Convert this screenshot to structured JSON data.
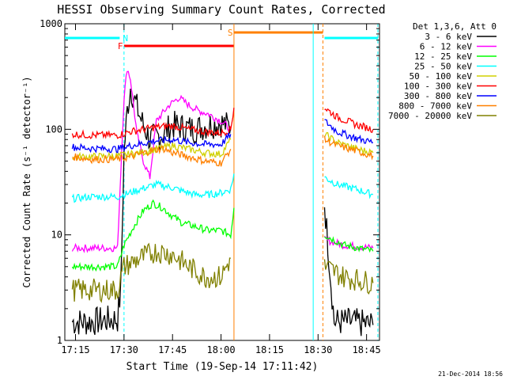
{
  "chart_data": {
    "type": "line",
    "title": "HESSI Observing Summary Count Rates, Corrected",
    "xlabel": "Start Time (19-Sep-14 17:11:42)",
    "ylabel": "Corrected Count Rate (s⁻¹ detector⁻¹)",
    "date_stamp": "21-Dec-2014 18:56",
    "xlim": [
      "17:11:42",
      "18:49:00"
    ],
    "ylim": [
      1,
      1000
    ],
    "y_scale": "log",
    "x_ticks": [
      "17:15",
      "17:30",
      "17:45",
      "18:00",
      "18:15",
      "18:30",
      "18:45"
    ],
    "y_ticks": [
      "1",
      "10",
      "100",
      "1000"
    ],
    "legend": {
      "title": "Det 1,3,6, Att 0",
      "placement": "outside-right"
    },
    "flags": [
      {
        "label": "N",
        "color": "#00ffff",
        "segments": [
          [
            "17:11:42",
            "17:28:40"
          ],
          [
            "18:32:00",
            "18:48:30"
          ]
        ]
      },
      {
        "label": "F",
        "color": "#ff0000",
        "segments": [
          [
            "17:30:00",
            "18:04:00"
          ]
        ]
      },
      {
        "label": "S",
        "color": "#ff8000",
        "segments": [
          [
            "18:04:00",
            "18:31:30"
          ]
        ]
      }
    ],
    "markers": [
      {
        "time": "17:30:00",
        "color": "#00ffff",
        "style": "dashed"
      },
      {
        "time": "18:04:00",
        "color": "#ff8000",
        "style": "solid"
      },
      {
        "time": "18:28:30",
        "color": "#00ffff",
        "style": "solid"
      },
      {
        "time": "18:31:30",
        "color": "#ff8000",
        "style": "dashed"
      },
      {
        "time": "18:48:30",
        "color": "#00ffff",
        "style": "dashed"
      }
    ],
    "gap": [
      "18:04:30",
      "18:31:30"
    ],
    "series": [
      {
        "name": "3 - 6 keV",
        "color": "#000000",
        "points": [
          [
            "17:14",
            1.5
          ],
          [
            "17:20",
            1.5
          ],
          [
            "17:28",
            1.6
          ],
          [
            "17:29",
            3
          ],
          [
            "17:30",
            60
          ],
          [
            "17:31",
            150
          ],
          [
            "17:32",
            250
          ],
          [
            "17:33",
            200
          ],
          [
            "17:35",
            130
          ],
          [
            "17:38",
            80
          ],
          [
            "17:42",
            90
          ],
          [
            "17:45",
            110
          ],
          [
            "17:48",
            105
          ],
          [
            "17:52",
            100
          ],
          [
            "17:56",
            110
          ],
          [
            "18:00",
            115
          ],
          [
            "18:03",
            105
          ],
          [
            "18:32",
            20
          ],
          [
            "18:35",
            1.5
          ],
          [
            "18:40",
            1.5
          ],
          [
            "18:47",
            1.4
          ]
        ]
      },
      {
        "name": "6 - 12 keV",
        "color": "#ff00ff",
        "points": [
          [
            "17:14",
            7.5
          ],
          [
            "17:20",
            7.5
          ],
          [
            "17:28",
            7.5
          ],
          [
            "17:29",
            40
          ],
          [
            "17:30",
            200
          ],
          [
            "17:31",
            380
          ],
          [
            "17:32",
            300
          ],
          [
            "17:34",
            90
          ],
          [
            "17:36",
            50
          ],
          [
            "17:38",
            35
          ],
          [
            "17:40",
            120
          ],
          [
            "17:44",
            170
          ],
          [
            "17:47",
            200
          ],
          [
            "17:50",
            170
          ],
          [
            "17:53",
            150
          ],
          [
            "17:56",
            140
          ],
          [
            "18:00",
            120
          ],
          [
            "18:03",
            100
          ],
          [
            "18:32",
            9
          ],
          [
            "18:38",
            8
          ],
          [
            "18:47",
            7.5
          ]
        ]
      },
      {
        "name": "12 - 25 keV",
        "color": "#00ff00",
        "points": [
          [
            "17:14",
            5
          ],
          [
            "17:20",
            5
          ],
          [
            "17:28",
            5
          ],
          [
            "17:30",
            8
          ],
          [
            "17:33",
            12
          ],
          [
            "17:36",
            17
          ],
          [
            "17:39",
            20
          ],
          [
            "17:42",
            18
          ],
          [
            "17:45",
            15
          ],
          [
            "17:48",
            13
          ],
          [
            "17:52",
            12
          ],
          [
            "17:56",
            11
          ],
          [
            "18:00",
            11
          ],
          [
            "18:03",
            10
          ],
          [
            "18:04",
            18
          ],
          [
            "18:32",
            10
          ],
          [
            "18:38",
            8
          ],
          [
            "18:47",
            7
          ]
        ]
      },
      {
        "name": "25 - 50 keV",
        "color": "#00ffff",
        "points": [
          [
            "17:14",
            22
          ],
          [
            "17:20",
            23
          ],
          [
            "17:28",
            23
          ],
          [
            "17:30",
            24
          ],
          [
            "17:35",
            27
          ],
          [
            "17:40",
            30
          ],
          [
            "17:45",
            28
          ],
          [
            "17:48",
            26
          ],
          [
            "17:52",
            24
          ],
          [
            "17:56",
            24
          ],
          [
            "18:00",
            25
          ],
          [
            "18:03",
            27
          ],
          [
            "18:04",
            38
          ],
          [
            "18:32",
            35
          ],
          [
            "18:36",
            30
          ],
          [
            "18:42",
            27
          ],
          [
            "18:47",
            24
          ]
        ]
      },
      {
        "name": "50 - 100 keV",
        "color": "#d0d000",
        "points": [
          [
            "17:14",
            55
          ],
          [
            "17:20",
            55
          ],
          [
            "17:28",
            56
          ],
          [
            "17:30",
            57
          ],
          [
            "17:35",
            60
          ],
          [
            "17:40",
            65
          ],
          [
            "17:45",
            70
          ],
          [
            "17:50",
            65
          ],
          [
            "17:55",
            60
          ],
          [
            "18:00",
            58
          ],
          [
            "18:03",
            80
          ],
          [
            "18:32",
            90
          ],
          [
            "18:36",
            75
          ],
          [
            "18:42",
            65
          ],
          [
            "18:47",
            60
          ]
        ]
      },
      {
        "name": "100 - 300 keV",
        "color": "#ff0000",
        "points": [
          [
            "17:14",
            90
          ],
          [
            "17:20",
            88
          ],
          [
            "17:28",
            88
          ],
          [
            "17:32",
            95
          ],
          [
            "17:40",
            105
          ],
          [
            "17:45",
            108
          ],
          [
            "17:50",
            100
          ],
          [
            "17:55",
            95
          ],
          [
            "18:00",
            92
          ],
          [
            "18:03",
            100
          ],
          [
            "18:04",
            160
          ],
          [
            "18:32",
            160
          ],
          [
            "18:36",
            130
          ],
          [
            "18:42",
            110
          ],
          [
            "18:47",
            100
          ]
        ]
      },
      {
        "name": "300 - 800 keV",
        "color": "#0000ff",
        "points": [
          [
            "17:14",
            68
          ],
          [
            "17:20",
            66
          ],
          [
            "17:28",
            65
          ],
          [
            "17:32",
            70
          ],
          [
            "17:40",
            78
          ],
          [
            "17:45",
            80
          ],
          [
            "17:50",
            75
          ],
          [
            "17:55",
            72
          ],
          [
            "18:00",
            72
          ],
          [
            "18:03",
            90
          ],
          [
            "18:32",
            120
          ],
          [
            "18:36",
            95
          ],
          [
            "18:42",
            82
          ],
          [
            "18:47",
            75
          ]
        ]
      },
      {
        "name": "800 - 7000 keV",
        "color": "#ff8000",
        "points": [
          [
            "17:14",
            55
          ],
          [
            "17:20",
            52
          ],
          [
            "17:28",
            52
          ],
          [
            "17:32",
            55
          ],
          [
            "17:38",
            62
          ],
          [
            "17:42",
            66
          ],
          [
            "17:45",
            60
          ],
          [
            "17:50",
            55
          ],
          [
            "17:55",
            50
          ],
          [
            "18:00",
            48
          ],
          [
            "18:03",
            65
          ],
          [
            "18:32",
            80
          ],
          [
            "18:36",
            70
          ],
          [
            "18:42",
            62
          ],
          [
            "18:47",
            56
          ]
        ]
      },
      {
        "name": "7000 - 20000 keV",
        "color": "#808000",
        "points": [
          [
            "17:14",
            3
          ],
          [
            "17:20",
            3
          ],
          [
            "17:28",
            3
          ],
          [
            "17:30",
            5
          ],
          [
            "17:35",
            6
          ],
          [
            "17:40",
            7
          ],
          [
            "17:45",
            6.5
          ],
          [
            "17:50",
            5
          ],
          [
            "17:55",
            4
          ],
          [
            "18:00",
            4
          ],
          [
            "18:03",
            6
          ],
          [
            "18:32",
            5
          ],
          [
            "18:38",
            4
          ],
          [
            "18:47",
            3.5
          ]
        ]
      }
    ]
  }
}
